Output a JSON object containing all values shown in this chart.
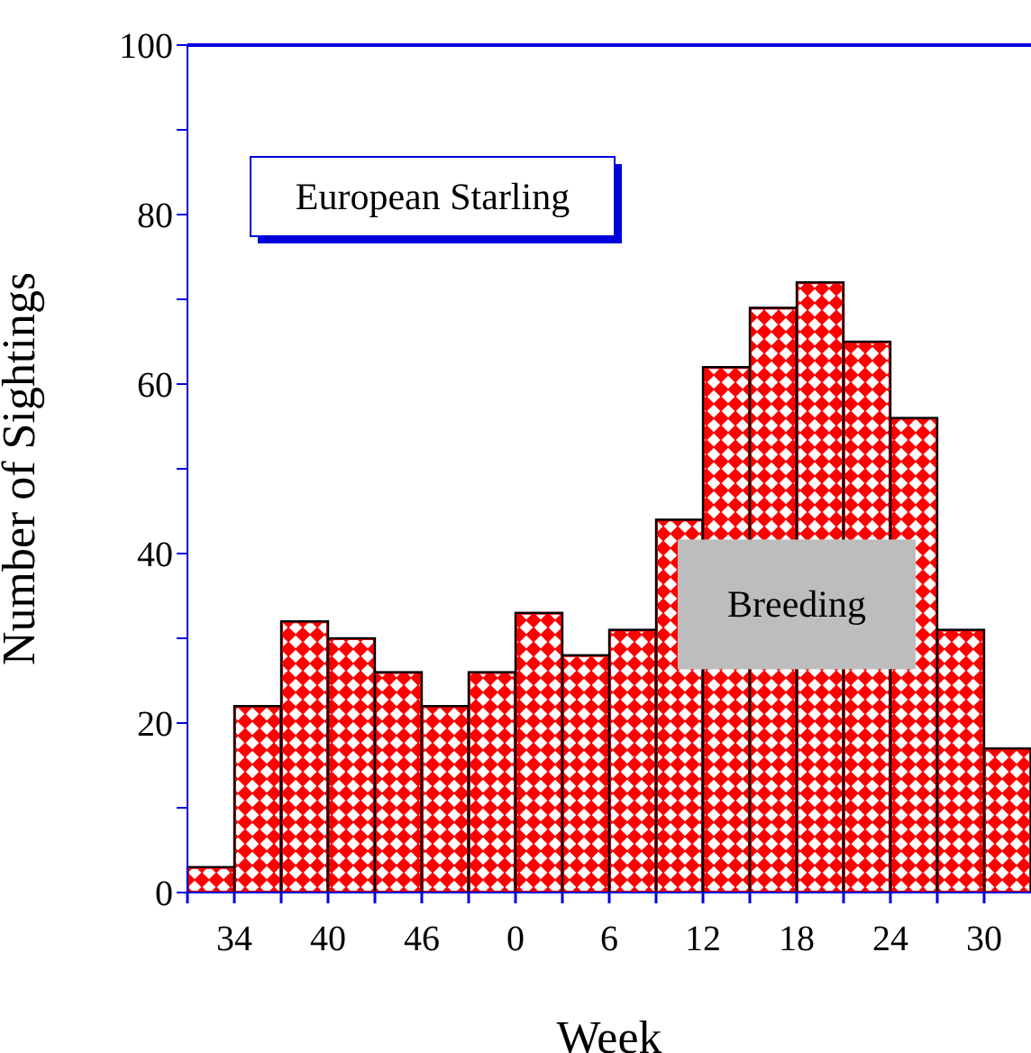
{
  "chart_data": {
    "type": "bar",
    "xlabel": "Week",
    "ylabel": "Number of Sightings",
    "categories": [
      null,
      "34",
      null,
      "40",
      null,
      "46",
      null,
      "0",
      null,
      "6",
      null,
      "12",
      null,
      "18",
      null,
      "24",
      null,
      "30"
    ],
    "values": [
      3,
      22,
      32,
      30,
      26,
      22,
      26,
      33,
      28,
      31,
      44,
      62,
      69,
      72,
      65,
      56,
      31,
      17
    ],
    "color": "#ff0000",
    "ylim": [
      0,
      100
    ],
    "yticks": [
      0,
      {
        "value": 10,
        "label": null
      },
      20,
      {
        "value": 30,
        "label": null
      },
      40,
      {
        "value": 50,
        "label": null
      },
      60,
      {
        "value": 70,
        "label": null
      },
      80,
      {
        "value": 90,
        "label": null
      },
      100
    ],
    "annotations": [
      "European Starling",
      {
        "text": "Breeding",
        "x": "18",
        "y": 34
      }
    ]
  }
}
